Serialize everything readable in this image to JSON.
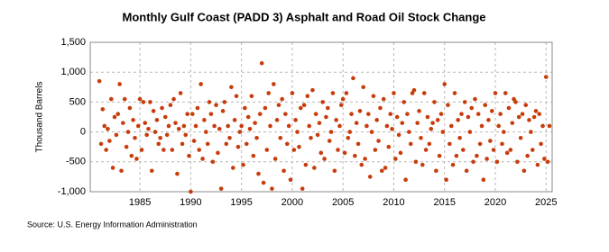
{
  "chart_data": {
    "type": "scatter",
    "title": "Monthly Gulf Coast (PADD 3) Asphalt and Road Oil Stock Change",
    "ylabel": "Thousand Barrels",
    "source": "Source: U.S. Energy Information Administration",
    "color": "#c83c0c",
    "grid": true,
    "xlim": [
      1980.1,
      2025.6
    ],
    "xticks": [
      1985,
      1990,
      1995,
      2000,
      2005,
      2010,
      2015,
      2020,
      2025
    ],
    "ylim": [
      -1000,
      1500
    ],
    "yticks": [
      {
        "value": 1500,
        "label": "1,500"
      },
      {
        "value": 1000,
        "label": "1,000"
      },
      500,
      0,
      -500,
      {
        "value": -1000,
        "label": "-1,000"
      }
    ],
    "x": [
      1981.0,
      1981.17,
      1981.33,
      1981.5,
      1981.67,
      1981.83,
      1982.0,
      1982.17,
      1982.33,
      1982.5,
      1982.67,
      1982.83,
      1983.0,
      1983.17,
      1983.33,
      1983.5,
      1983.67,
      1983.83,
      1984.0,
      1984.17,
      1984.33,
      1984.5,
      1984.67,
      1984.83,
      1985.0,
      1985.17,
      1985.33,
      1985.5,
      1985.67,
      1985.83,
      1986.0,
      1986.17,
      1986.33,
      1986.5,
      1986.67,
      1986.83,
      1987.0,
      1987.17,
      1987.33,
      1987.5,
      1987.67,
      1987.83,
      1988.0,
      1988.17,
      1988.33,
      1988.5,
      1988.67,
      1988.83,
      1989.0,
      1989.17,
      1989.33,
      1989.5,
      1989.67,
      1989.83,
      1990.0,
      1990.17,
      1990.33,
      1990.5,
      1990.67,
      1990.83,
      1991.0,
      1991.17,
      1991.33,
      1991.5,
      1991.67,
      1991.83,
      1992.0,
      1992.17,
      1992.33,
      1992.5,
      1992.67,
      1992.83,
      1993.0,
      1993.17,
      1993.33,
      1993.5,
      1993.67,
      1993.83,
      1994.0,
      1994.17,
      1994.33,
      1994.5,
      1994.67,
      1994.83,
      1995.0,
      1995.17,
      1995.33,
      1995.5,
      1995.67,
      1995.83,
      1996.0,
      1996.17,
      1996.33,
      1996.5,
      1996.67,
      1996.83,
      1997.0,
      1997.17,
      1997.33,
      1997.5,
      1997.67,
      1997.83,
      1998.0,
      1998.17,
      1998.33,
      1998.5,
      1998.67,
      1998.83,
      1999.0,
      1999.17,
      1999.33,
      1999.5,
      1999.67,
      1999.83,
      2000.0,
      2000.17,
      2000.33,
      2000.5,
      2000.67,
      2000.83,
      2001.0,
      2001.17,
      2001.33,
      2001.5,
      2001.67,
      2001.83,
      2002.0,
      2002.17,
      2002.33,
      2002.5,
      2002.67,
      2002.83,
      2003.0,
      2003.17,
      2003.33,
      2003.5,
      2003.67,
      2003.83,
      2004.0,
      2004.17,
      2004.33,
      2004.5,
      2004.67,
      2004.83,
      2005.0,
      2005.17,
      2005.33,
      2005.5,
      2005.67,
      2005.83,
      2006.0,
      2006.17,
      2006.33,
      2006.5,
      2006.67,
      2006.83,
      2007.0,
      2007.17,
      2007.33,
      2007.5,
      2007.67,
      2007.83,
      2008.0,
      2008.17,
      2008.33,
      2008.5,
      2008.67,
      2008.83,
      2009.0,
      2009.17,
      2009.33,
      2009.5,
      2009.67,
      2009.83,
      2010.0,
      2010.17,
      2010.33,
      2010.5,
      2010.67,
      2010.83,
      2011.0,
      2011.17,
      2011.33,
      2011.5,
      2011.67,
      2011.83,
      2012.0,
      2012.17,
      2012.33,
      2012.5,
      2012.67,
      2012.83,
      2013.0,
      2013.17,
      2013.33,
      2013.5,
      2013.67,
      2013.83,
      2014.0,
      2014.17,
      2014.33,
      2014.5,
      2014.67,
      2014.83,
      2015.0,
      2015.17,
      2015.33,
      2015.5,
      2015.67,
      2015.83,
      2016.0,
      2016.17,
      2016.33,
      2016.5,
      2016.67,
      2016.83,
      2017.0,
      2017.17,
      2017.33,
      2017.5,
      2017.67,
      2017.83,
      2018.0,
      2018.17,
      2018.33,
      2018.5,
      2018.67,
      2018.83,
      2019.0,
      2019.17,
      2019.33,
      2019.5,
      2019.67,
      2019.83,
      2020.0,
      2020.17,
      2020.33,
      2020.5,
      2020.67,
      2020.83,
      2021.0,
      2021.17,
      2021.33,
      2021.5,
      2021.67,
      2021.83,
      2022.0,
      2022.17,
      2022.33,
      2022.5,
      2022.67,
      2022.83,
      2023.0,
      2023.17,
      2023.33,
      2023.5,
      2023.67,
      2023.83,
      2024.0,
      2024.17,
      2024.33,
      2024.5,
      2024.67,
      2024.83,
      2025.0,
      2025.17,
      2025.33
    ],
    "values": [
      850,
      -200,
      380,
      100,
      -300,
      50,
      -150,
      550,
      -600,
      250,
      -50,
      300,
      800,
      -650,
      150,
      550,
      -250,
      0,
      400,
      -400,
      200,
      -100,
      -450,
      100,
      550,
      -300,
      500,
      150,
      -50,
      50,
      500,
      -650,
      350,
      0,
      200,
      -200,
      -100,
      400,
      -300,
      250,
      -50,
      100,
      450,
      -300,
      550,
      150,
      -700,
      50,
      650,
      -200,
      100,
      -50,
      300,
      -400,
      -1000,
      300,
      -150,
      100,
      400,
      -300,
      800,
      -450,
      200,
      0,
      -200,
      500,
      300,
      -500,
      100,
      450,
      -350,
      50,
      -950,
      350,
      500,
      -200,
      100,
      -100,
      750,
      -600,
      200,
      600,
      -250,
      0,
      100,
      -550,
      400,
      -200,
      250,
      50,
      600,
      -400,
      150,
      -100,
      -700,
      300,
      1150,
      -850,
      400,
      -300,
      650,
      100,
      -950,
      800,
      -450,
      200,
      450,
      -100,
      550,
      -650,
      300,
      -200,
      100,
      -800,
      650,
      -300,
      200,
      0,
      -250,
      400,
      -950,
      450,
      -550,
      600,
      100,
      -100,
      700,
      -600,
      300,
      -50,
      150,
      -350,
      500,
      -450,
      250,
      400,
      -150,
      0,
      650,
      -650,
      200,
      -300,
      100,
      450,
      550,
      -350,
      650,
      -100,
      0,
      300,
      900,
      -400,
      150,
      -200,
      350,
      -550,
      750,
      -450,
      100,
      300,
      -750,
      0,
      600,
      -300,
      200,
      -150,
      400,
      -650,
      550,
      -600,
      100,
      -250,
      300,
      50,
      650,
      -450,
      250,
      -50,
      -350,
      150,
      500,
      -800,
      300,
      0,
      -200,
      650,
      700,
      -500,
      150,
      350,
      -100,
      -550,
      650,
      -300,
      250,
      -200,
      50,
      150,
      500,
      -650,
      200,
      -400,
      300,
      0,
      800,
      -800,
      450,
      -200,
      100,
      -550,
      650,
      -400,
      200,
      -100,
      300,
      -300,
      500,
      -650,
      250,
      0,
      400,
      -500,
      550,
      -400,
      300,
      -200,
      100,
      -800,
      450,
      -450,
      200,
      -150,
      350,
      -300,
      650,
      -500,
      100,
      300,
      -200,
      0,
      650,
      -350,
      400,
      -300,
      150,
      550,
      500,
      -500,
      250,
      -100,
      300,
      -650,
      450,
      -400,
      200,
      0,
      -300,
      250,
      350,
      -550,
      300,
      -200,
      100,
      -450,
      920,
      -500,
      100
    ]
  }
}
